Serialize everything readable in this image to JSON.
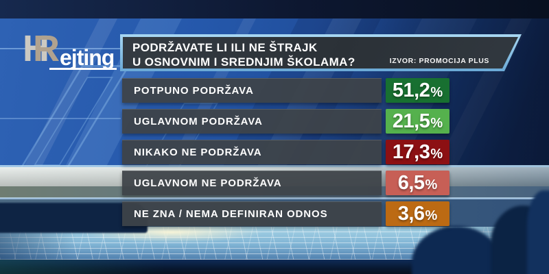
{
  "brand": {
    "logo_h": "H",
    "logo_r": "R",
    "logo_suffix": "ejting"
  },
  "header": {
    "question_line1": "PODRŽAVATE LI ILI NE ŠTRAJK",
    "question_line2": "U OSNOVNIM I SREDNJIM ŠKOLAMA?",
    "source": "IZVOR: PROMOCIJA PLUS"
  },
  "colors": {
    "title_border_blue": "#7cbbe4",
    "panel_charcoal": "#2d3339",
    "bar_gray": "#43484c",
    "green_dark": "#187031",
    "green_light": "#55b14d",
    "red_dark": "#8c1013",
    "red_light": "#c75f56",
    "orange": "#bc6a13"
  },
  "rows": [
    {
      "label": "POTPUNO PODRŽAVA",
      "value": "51,2",
      "unit": "%",
      "color": "#187031"
    },
    {
      "label": "UGLAVNOM PODRŽAVA",
      "value": "21,5",
      "unit": "%",
      "color": "#55b14d"
    },
    {
      "label": "NIKAKO NE PODRŽAVA",
      "value": "17,3",
      "unit": "%",
      "color": "#8c1013"
    },
    {
      "label": "UGLAVNOM NE PODRŽAVA",
      "value": "6,5",
      "unit": "%",
      "color": "#c75f56"
    },
    {
      "label": "NE ZNA / NEMA DEFINIRAN ODNOS",
      "value": "3,6",
      "unit": "%",
      "color": "#bc6a13"
    }
  ],
  "chart_data": {
    "type": "bar",
    "title": "PODRŽAVATE LI ILI NE ŠTRAJK U OSNOVNIM I SREDNJIM ŠKOLAMA?",
    "source": "IZVOR: PROMOCIJA PLUS",
    "categories": [
      "POTPUNO PODRŽAVA",
      "UGLAVNOM PODRŽAVA",
      "NIKAKO NE PODRŽAVA",
      "UGLAVNOM NE PODRŽAVA",
      "NE ZNA / NEMA DEFINIRAN ODNOS"
    ],
    "values": [
      51.2,
      21.5,
      17.3,
      6.5,
      3.6
    ],
    "value_labels": [
      "51,2%",
      "21,5%",
      "17,3%",
      "6,5%",
      "3,6%"
    ],
    "unit": "%",
    "bar_colors": [
      "#187031",
      "#55b14d",
      "#8c1013",
      "#c75f56",
      "#bc6a13"
    ],
    "legend": false,
    "orientation": "horizontal-list"
  }
}
